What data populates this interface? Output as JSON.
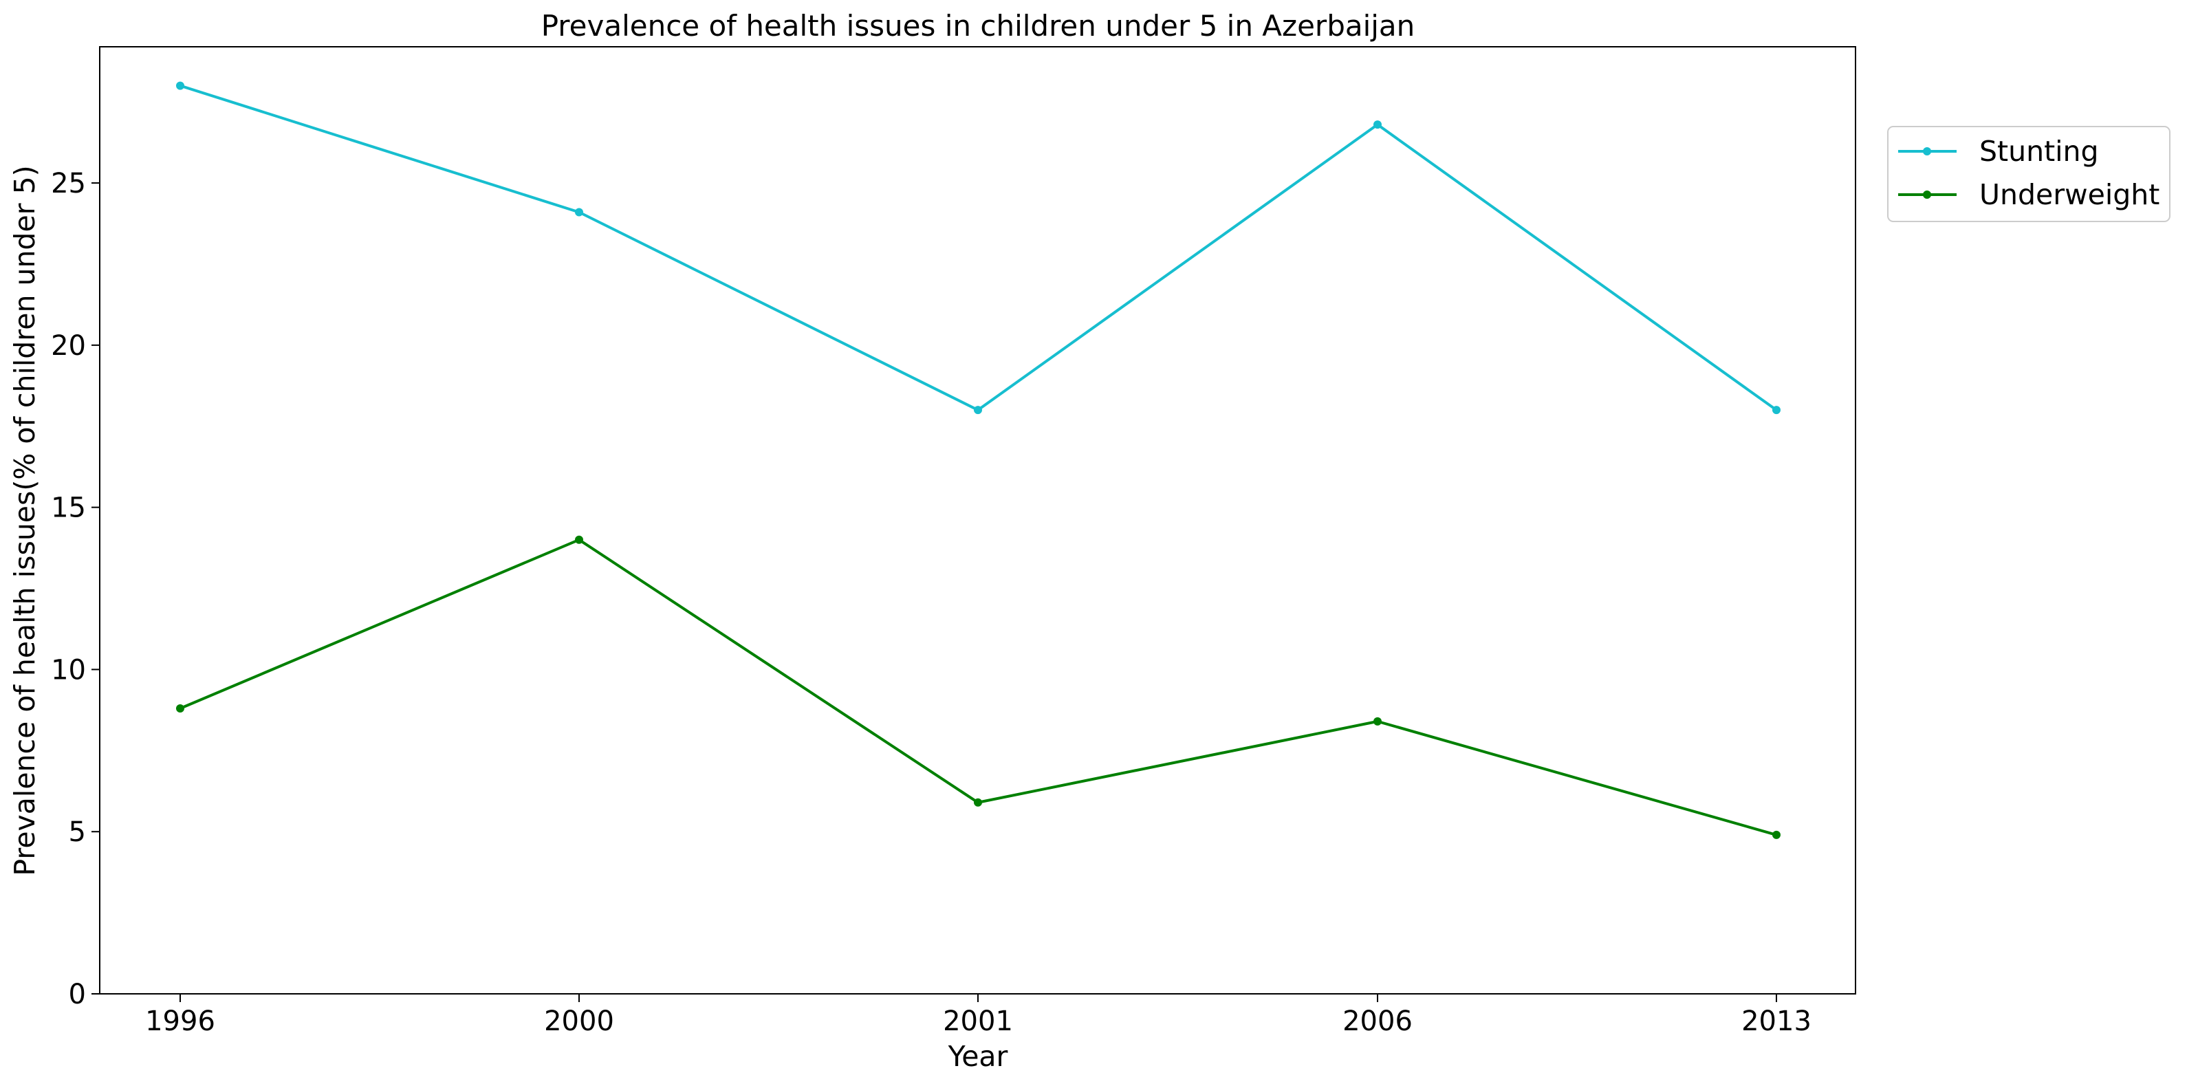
{
  "chart_data": {
    "type": "line",
    "title": "Prevalence of health issues in children under 5 in Azerbaijan",
    "xlabel": "Year",
    "ylabel": "Prevalence of health issues(% of children under 5)",
    "categories": [
      "1996",
      "2000",
      "2001",
      "2006",
      "2013"
    ],
    "ylim": [
      0,
      29.2
    ],
    "yticks": [
      0,
      5,
      10,
      15,
      20,
      25
    ],
    "grid": false,
    "legend_position": "upper-right-outside",
    "series": [
      {
        "name": "Stunting",
        "color": "#17becf",
        "values": [
          28.0,
          24.1,
          18.0,
          26.8,
          18.0
        ]
      },
      {
        "name": "Underweight",
        "color": "#008000",
        "values": [
          8.8,
          14.0,
          5.9,
          8.4,
          4.9
        ]
      }
    ]
  }
}
